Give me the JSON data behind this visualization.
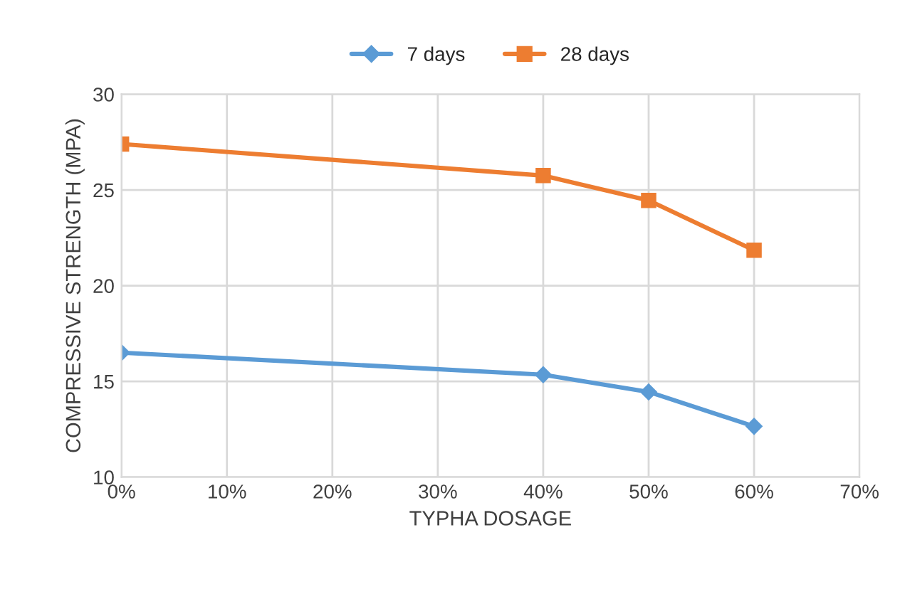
{
  "chart_data": {
    "type": "line",
    "xlabel": "TYPHA DOSAGE",
    "ylabel": "COMPRESSIVE STRENGTH (MPA)",
    "x": [
      0,
      40,
      50,
      60
    ],
    "series": [
      {
        "name": "7 days",
        "color": "#5b9bd5",
        "marker": "diamond",
        "values": [
          16.5,
          15.35,
          14.45,
          12.65
        ]
      },
      {
        "name": "28 days",
        "color": "#ed7d31",
        "marker": "square",
        "values": [
          27.4,
          25.75,
          24.45,
          21.85
        ]
      }
    ],
    "xlim": [
      0,
      70
    ],
    "xticks": [
      {
        "value": 0,
        "label": "0%"
      },
      {
        "value": 10,
        "label": "10%"
      },
      {
        "value": 20,
        "label": "20%"
      },
      {
        "value": 30,
        "label": "30%"
      },
      {
        "value": 40,
        "label": "40%"
      },
      {
        "value": 50,
        "label": "50%"
      },
      {
        "value": 60,
        "label": "60%"
      },
      {
        "value": 70,
        "label": "70%"
      }
    ],
    "ylim": [
      10,
      30
    ],
    "yticks": [
      10,
      15,
      20,
      25,
      30
    ],
    "grid": true,
    "legend": "top",
    "line_style": "solid"
  }
}
